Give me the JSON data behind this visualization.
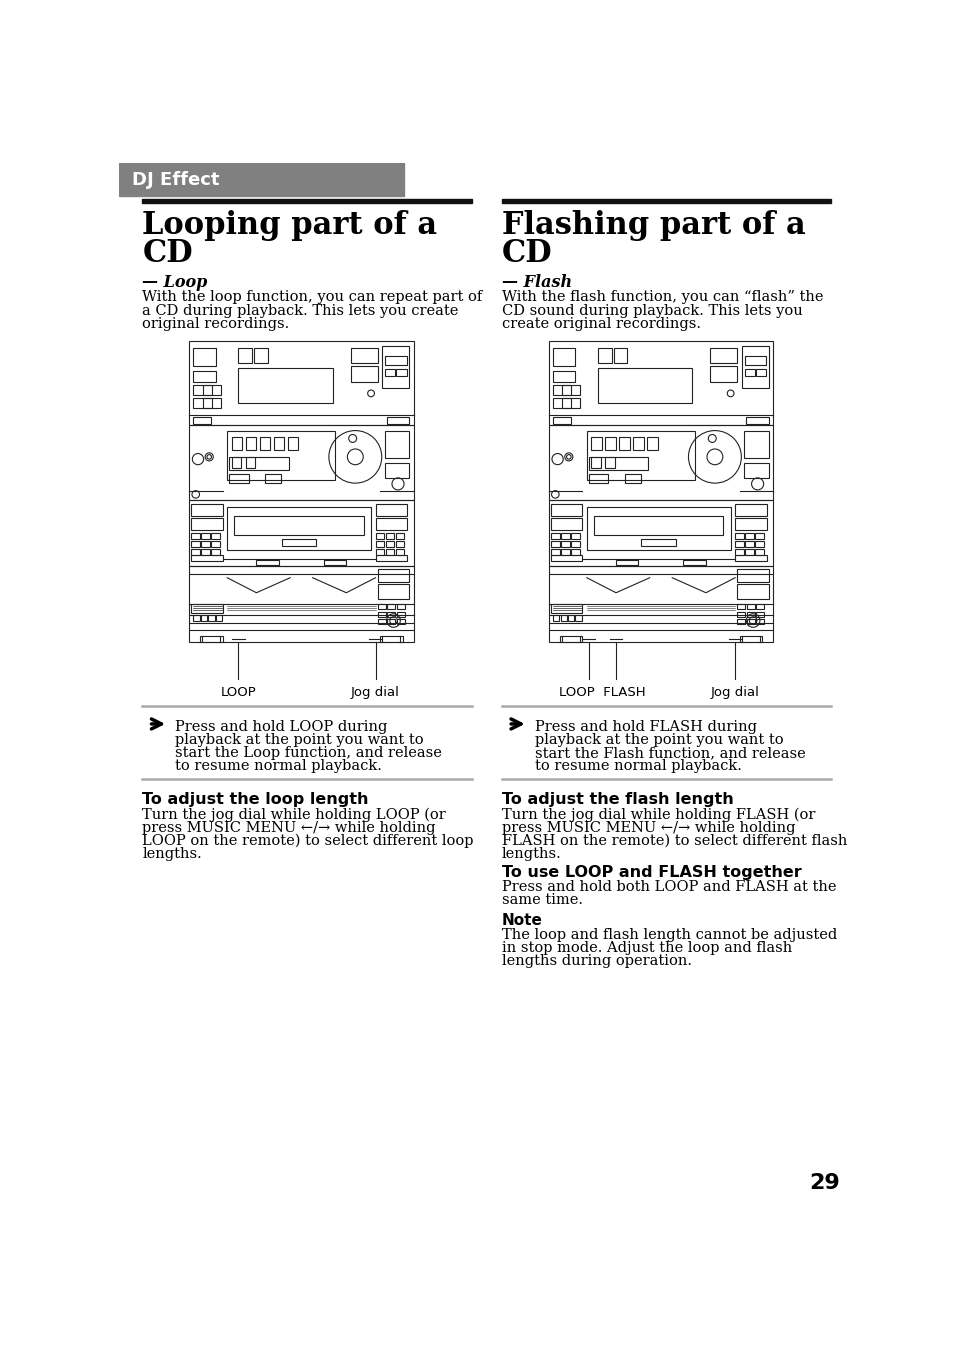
{
  "bg_color": "#ffffff",
  "header_bg": "#808080",
  "header_text": "DJ Effect",
  "header_text_color": "#ffffff",
  "page_number": "29",
  "left_title_line1": "Looping part of a",
  "left_title_line2": "CD",
  "right_title_line1": "Flashing part of a",
  "right_title_line2": "CD",
  "left_subtitle": "— Loop",
  "right_subtitle": "— Flash",
  "left_intro_lines": [
    "With the loop function, you can repeat part of",
    "a CD during playback. This lets you create",
    "original recordings."
  ],
  "right_intro_lines": [
    "With the flash function, you can “flash” the",
    "CD sound during playback. This lets you",
    "create original recordings."
  ],
  "left_label1": "LOOP",
  "left_label2": "Jog dial",
  "right_label1": "LOOP  FLASH",
  "right_label2": "Jog dial",
  "left_bullet_lines": [
    "Press and hold LOOP during",
    "playback at the point you want to",
    "start the Loop function, and release",
    "to resume normal playback."
  ],
  "right_bullet_lines": [
    "Press and hold FLASH during",
    "playback at the point you want to",
    "start the Flash function, and release",
    "to resume normal playback."
  ],
  "left_section_title": "To adjust the loop length",
  "left_section_lines": [
    "Turn the jog dial while holding LOOP (or",
    "press MUSIC MENU ←/→ while holding",
    "LOOP on the remote) to select different loop",
    "lengths."
  ],
  "right_section1_title": "To adjust the flash length",
  "right_section1_lines": [
    "Turn the jog dial while holding FLASH (or",
    "press MUSIC MENU ←/→ while holding",
    "FLASH on the remote) to select different flash",
    "lengths."
  ],
  "right_section2_title": "To use LOOP and FLASH together",
  "right_section2_lines": [
    "Press and hold both LOOP and FLASH at the",
    "same time."
  ],
  "note_title": "Note",
  "note_lines": [
    "The loop and flash length cannot be adjusted",
    "in stop mode. Adjust the loop and flash",
    "lengths during operation."
  ],
  "divider_color": "#aaaaaa",
  "dark_bar_color": "#111111",
  "text_color": "#000000",
  "stereo_color": "#222222"
}
